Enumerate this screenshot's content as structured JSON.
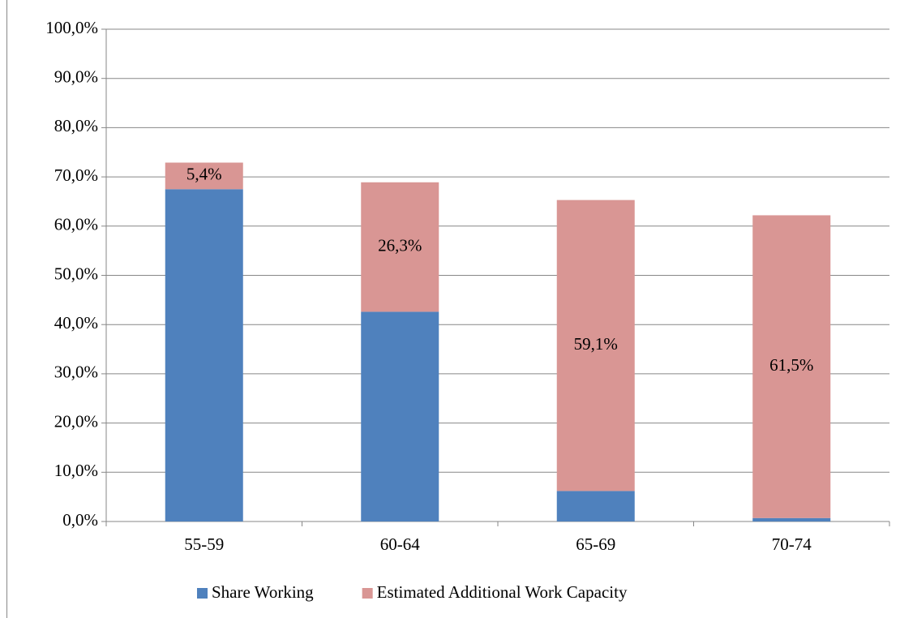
{
  "chart_data": {
    "type": "stacked_bar",
    "categories": [
      "55-59",
      "60-64",
      "65-69",
      "70-74"
    ],
    "series": [
      {
        "name": "Share Working",
        "color": "#4f81bd",
        "values": [
          67.5,
          42.6,
          6.2,
          0.7
        ]
      },
      {
        "name": "Estimated Additional Work Capacity",
        "color": "#d99694",
        "values": [
          5.4,
          26.3,
          59.1,
          61.5
        ],
        "value_labels": [
          "5,4%",
          "26,3%",
          "59,1%",
          "61,5%"
        ]
      }
    ],
    "ylim": [
      0,
      100
    ],
    "yticks": [
      {
        "value": 0,
        "label": "0,0%"
      },
      {
        "value": 10,
        "label": "10,0%"
      },
      {
        "value": 20,
        "label": "20,0%"
      },
      {
        "value": 30,
        "label": "30,0%"
      },
      {
        "value": 40,
        "label": "40,0%"
      },
      {
        "value": 50,
        "label": "50,0%"
      },
      {
        "value": 60,
        "label": "60,0%"
      },
      {
        "value": 70,
        "label": "70,0%"
      },
      {
        "value": 80,
        "label": "80,0%"
      },
      {
        "value": 90,
        "label": "90,0%"
      },
      {
        "value": 100,
        "label": "100,0%"
      }
    ],
    "grid": true,
    "legend": "bottom"
  }
}
